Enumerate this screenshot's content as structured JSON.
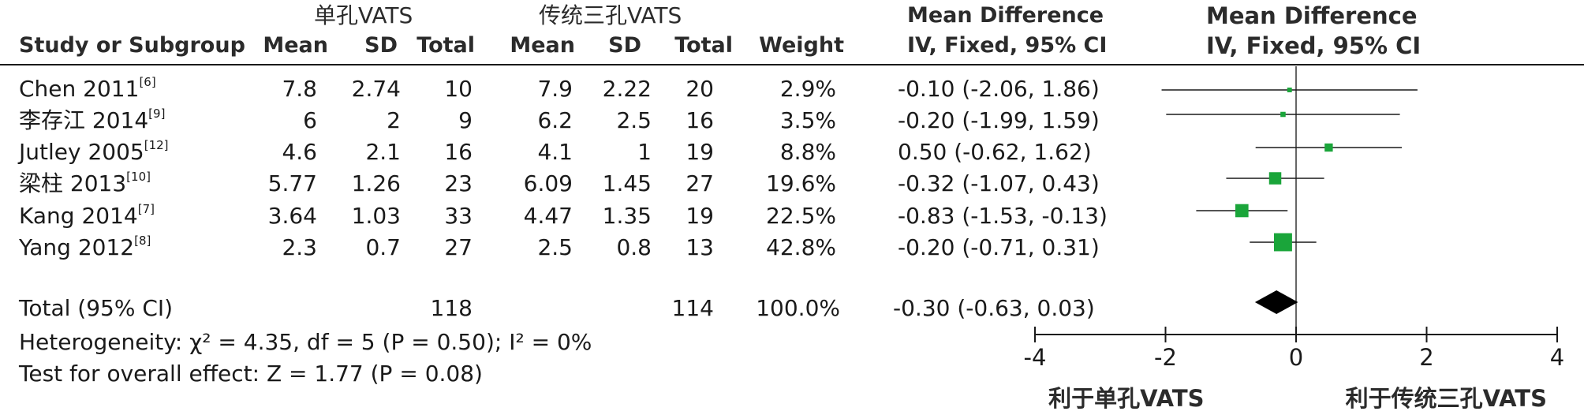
{
  "headers": {
    "group1": "单孔VATS",
    "group2": "传统三孔VATS",
    "study": "Study or Subgroup",
    "mean1": "Mean",
    "sd1": "SD",
    "total1": "Total",
    "mean2": "Mean",
    "sd2": "SD",
    "total2": "Total",
    "weight": "Weight",
    "md_title": "Mean Difference",
    "md_method": "IV, Fixed, 95% CI",
    "plot_title": "Mean Difference",
    "plot_method": "IV, Fixed, 95% CI"
  },
  "studies": [
    {
      "name": "Chen 2011",
      "ref": "[6]",
      "mean1": "7.8",
      "sd1": "2.74",
      "total1": "10",
      "mean2": "7.9",
      "sd2": "2.22",
      "total2": "20",
      "weight": "2.9%",
      "ci_text": "-0.10 (-2.06, 1.86)"
    },
    {
      "name": "李存江 2014",
      "ref": "[9]",
      "mean1": "6",
      "sd1": "2",
      "total1": "9",
      "mean2": "6.2",
      "sd2": "2.5",
      "total2": "16",
      "weight": "3.5%",
      "ci_text": "-0.20 (-1.99, 1.59)"
    },
    {
      "name": "Jutley 2005",
      "ref": "[12]",
      "mean1": "4.6",
      "sd1": "2.1",
      "total1": "16",
      "mean2": "4.1",
      "sd2": "1",
      "total2": "19",
      "weight": "8.8%",
      "ci_text": "0.50 (-0.62, 1.62)"
    },
    {
      "name": "梁柱 2013",
      "ref": "[10]",
      "mean1": "5.77",
      "sd1": "1.26",
      "total1": "23",
      "mean2": "6.09",
      "sd2": "1.45",
      "total2": "27",
      "weight": "19.6%",
      "ci_text": "-0.32 (-1.07, 0.43)"
    },
    {
      "name": "Kang 2014",
      "ref": "[7]",
      "mean1": "3.64",
      "sd1": "1.03",
      "total1": "33",
      "mean2": "4.47",
      "sd2": "1.35",
      "total2": "19",
      "weight": "22.5%",
      "ci_text": "-0.83 (-1.53, -0.13)"
    },
    {
      "name": "Yang 2012",
      "ref": "[8]",
      "mean1": "2.3",
      "sd1": "0.7",
      "total1": "27",
      "mean2": "2.5",
      "sd2": "0.8",
      "total2": "13",
      "weight": "42.8%",
      "ci_text": "-0.20 (-0.71, 0.31)"
    }
  ],
  "total": {
    "label": "Total (95% CI)",
    "total1": "118",
    "total2": "114",
    "weight": "100.0%",
    "ci_text": "-0.30 (-0.63, 0.03)"
  },
  "footer": {
    "heterogeneity": "Heterogeneity: χ² = 4.35, df = 5 (P = 0.50); I² = 0%",
    "overall": "Test for overall effect: Z = 1.77 (P = 0.08)"
  },
  "chart_data": {
    "type": "forest",
    "title": "Mean Difference",
    "subtitle": "IV, Fixed, 95% CI",
    "xlim": [
      -4,
      4
    ],
    "ticks": [
      -4,
      -2,
      0,
      2,
      4
    ],
    "tick_labels": [
      "-4",
      "-2",
      "0",
      "2",
      "4"
    ],
    "favours_left": "利于单孔VATS",
    "favours_right": "利于传统三孔VATS",
    "marker_color": "#1aa53a",
    "studies": [
      {
        "label": "Chen 2011",
        "estimate": -0.1,
        "lower": -2.06,
        "upper": 1.86,
        "weight": 2.9
      },
      {
        "label": "李存江 2014",
        "estimate": -0.2,
        "lower": -1.99,
        "upper": 1.59,
        "weight": 3.5
      },
      {
        "label": "Jutley 2005",
        "estimate": 0.5,
        "lower": -0.62,
        "upper": 1.62,
        "weight": 8.8
      },
      {
        "label": "梁柱 2013",
        "estimate": -0.32,
        "lower": -1.07,
        "upper": 0.43,
        "weight": 19.6
      },
      {
        "label": "Kang 2014",
        "estimate": -0.83,
        "lower": -1.53,
        "upper": -0.13,
        "weight": 22.5
      },
      {
        "label": "Yang 2012",
        "estimate": -0.2,
        "lower": -0.71,
        "upper": 0.31,
        "weight": 42.8
      }
    ],
    "pooled": {
      "label": "Total (95% CI)",
      "estimate": -0.3,
      "lower": -0.63,
      "upper": 0.03
    }
  }
}
